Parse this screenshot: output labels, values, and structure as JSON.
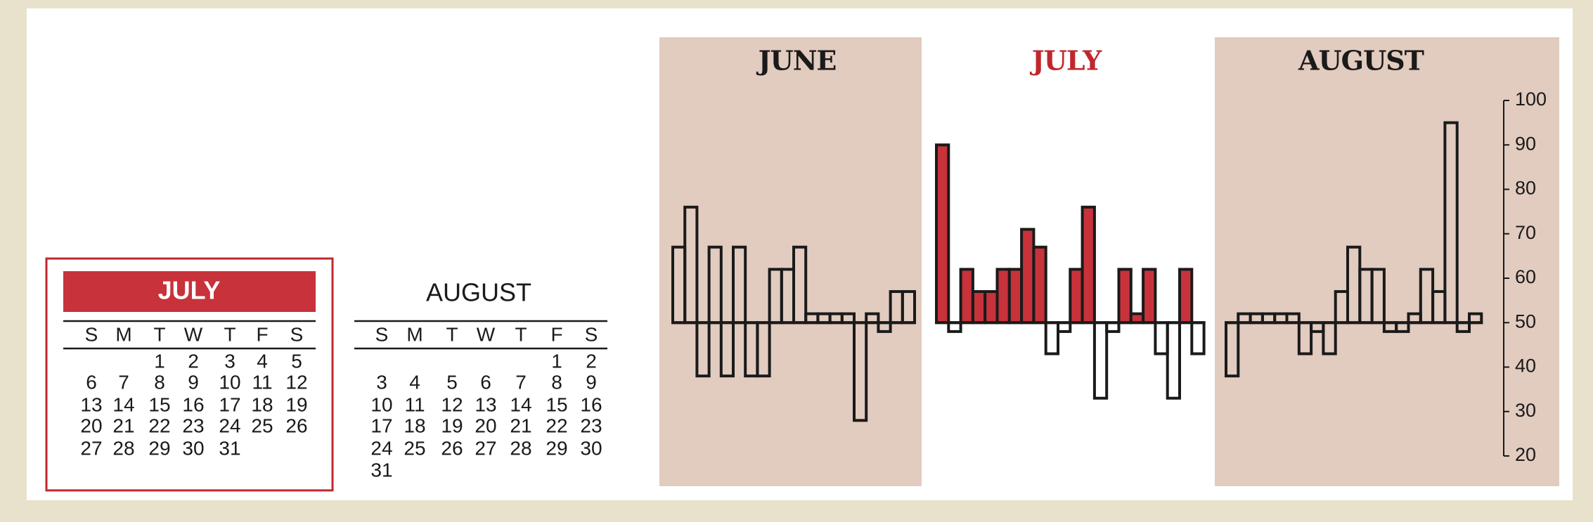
{
  "calendars": [
    {
      "title": "JULY",
      "weekdays": [
        "S",
        "M",
        "T",
        "W",
        "T",
        "F",
        "S"
      ],
      "weeks": [
        [
          null,
          null,
          1,
          2,
          3,
          4,
          5
        ],
        [
          6,
          7,
          8,
          9,
          10,
          11,
          12
        ],
        [
          13,
          14,
          15,
          16,
          17,
          18,
          19
        ],
        [
          20,
          21,
          22,
          23,
          24,
          25,
          26
        ],
        [
          27,
          28,
          29,
          30,
          31,
          null,
          null
        ]
      ]
    },
    {
      "title": "AUGUST",
      "weekdays": [
        "S",
        "M",
        "T",
        "W",
        "T",
        "F",
        "S"
      ],
      "weeks": [
        [
          null,
          null,
          null,
          null,
          null,
          1,
          2
        ],
        [
          3,
          4,
          5,
          6,
          7,
          8,
          9
        ],
        [
          10,
          11,
          12,
          13,
          14,
          15,
          16
        ],
        [
          17,
          18,
          19,
          20,
          21,
          22,
          23
        ],
        [
          24,
          25,
          26,
          27,
          28,
          29,
          30
        ],
        [
          31,
          null,
          null,
          null,
          null,
          null,
          null
        ]
      ]
    }
  ],
  "chart_data": [
    {
      "type": "bar",
      "title": "JUNE",
      "title_color": "#1a1a1a",
      "panel_color": "#e2cbbf",
      "color": "#1a1a1a",
      "baseline": 50,
      "categories": [
        null,
        null,
        null,
        null,
        null,
        null,
        null,
        null,
        null,
        null,
        null,
        null,
        null,
        null,
        null,
        null,
        null,
        null,
        null,
        null
      ],
      "values": [
        67,
        76,
        38,
        67,
        38,
        67,
        38,
        38,
        62,
        62,
        67,
        52,
        52,
        52,
        52,
        28,
        52,
        48,
        57,
        57
      ],
      "ylim": [
        20,
        100
      ]
    },
    {
      "type": "bar",
      "title": "JULY",
      "title_color": "#c0272d",
      "color": "#1a1a1a",
      "fill_above": "#c8323a",
      "baseline": 50,
      "categories": [
        null,
        null,
        null,
        null,
        null,
        null,
        null,
        null,
        null,
        null,
        null,
        null,
        null,
        null,
        null,
        null,
        null,
        null,
        null,
        null,
        null,
        null
      ],
      "values": [
        90,
        48,
        62,
        57,
        57,
        62,
        62,
        71,
        67,
        43,
        48,
        62,
        76,
        33,
        48,
        62,
        52,
        62,
        43,
        33,
        62,
        43
      ],
      "ylim": [
        20,
        100
      ]
    },
    {
      "type": "bar",
      "title": "AUGUST",
      "title_color": "#1a1a1a",
      "panel_color": "#e2cbbf",
      "color": "#1a1a1a",
      "baseline": 50,
      "categories": [
        null,
        null,
        null,
        null,
        null,
        null,
        null,
        null,
        null,
        null,
        null,
        null,
        null,
        null,
        null,
        null,
        null,
        null,
        null,
        null,
        null
      ],
      "values": [
        38,
        52,
        52,
        52,
        52,
        52,
        43,
        48,
        43,
        57,
        67,
        62,
        62,
        48,
        48,
        52,
        62,
        57,
        95,
        48,
        52
      ],
      "ylim": [
        20,
        100
      ],
      "yticks": [
        100,
        90,
        80,
        70,
        60,
        50,
        40,
        30,
        20
      ]
    }
  ]
}
